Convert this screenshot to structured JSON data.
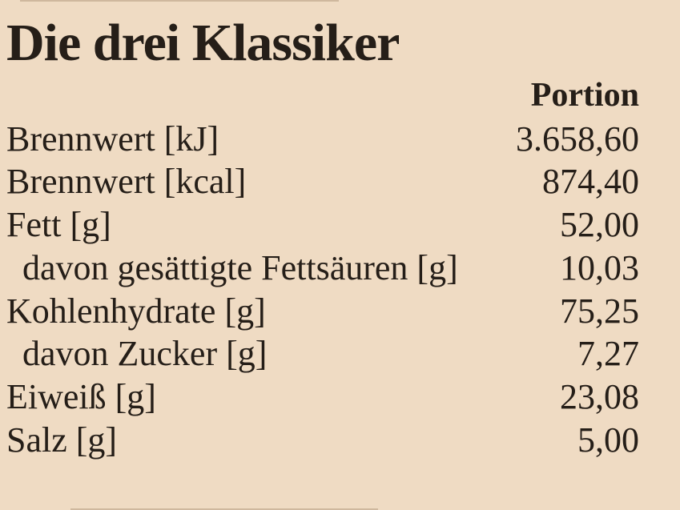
{
  "page": {
    "title": "Die drei Klassiker",
    "background_color": "#efdbc3",
    "text_color": "#251e18"
  },
  "table": {
    "column_header": "Portion",
    "rows": [
      {
        "label": "Brennwert [kJ]",
        "value": "3.658,60",
        "indent": false
      },
      {
        "label": "Brennwert [kcal]",
        "value": "874,40",
        "indent": false
      },
      {
        "label": "Fett [g]",
        "value": "52,00",
        "indent": false
      },
      {
        "label": "davon gesättigte Fettsäuren [g]",
        "value": "10,03",
        "indent": true
      },
      {
        "label": "Kohlenhydrate [g]",
        "value": "75,25",
        "indent": false
      },
      {
        "label": "davon Zucker [g]",
        "value": "7,27",
        "indent": true
      },
      {
        "label": "Eiweiß [g]",
        "value": "23,08",
        "indent": false
      },
      {
        "label": "Salz [g]",
        "value": "5,00",
        "indent": false
      }
    ]
  }
}
